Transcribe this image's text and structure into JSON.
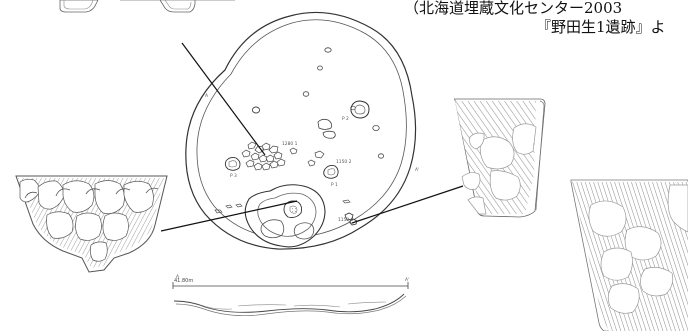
{
  "source_caption": {
    "line1": "（北海道埋蔵文化センター2003",
    "line2": "『野田生1遺跡』よ"
  },
  "feature_labels": {
    "p2": "P 2",
    "p3": "P 3",
    "p1": "P 1",
    "u1280": "1280 1",
    "u1150_2": "1150 2",
    "u1150_6": "1150 6",
    "a_left": "A",
    "a_right": "A'",
    "a_left_small": "A",
    "a_right_small": "A'",
    "scale": "41.80m"
  },
  "colors": {
    "line": "#333333",
    "hatch": "#7b7b7b",
    "paper": "#ffffff"
  }
}
